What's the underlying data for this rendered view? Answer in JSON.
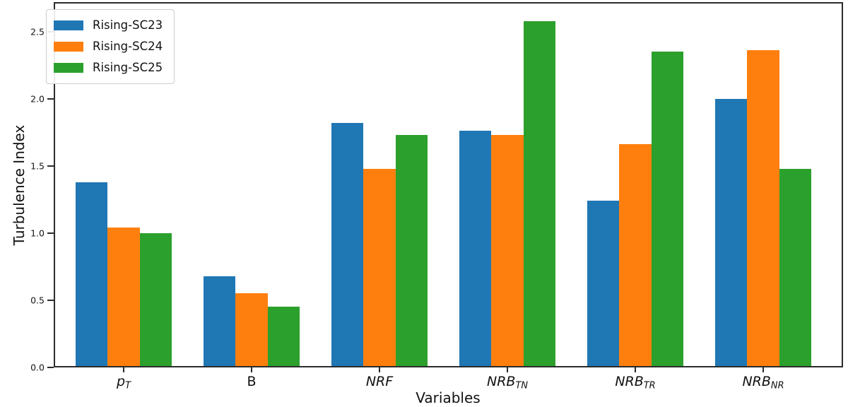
{
  "chart_data": {
    "type": "bar",
    "title": "",
    "xlabel": "Variables",
    "ylabel": "Turbulence Index",
    "categories": [
      "p_T",
      "B",
      "NRF",
      "NRB_TN",
      "NRB_TR",
      "NRB_NR"
    ],
    "x_tick_labels": [
      {
        "base": "p",
        "sub": "T",
        "italic": true
      },
      {
        "base": "B",
        "sub": "",
        "italic": false
      },
      {
        "base": "NRF",
        "sub": "",
        "italic": true
      },
      {
        "base": "NRB",
        "sub": "TN",
        "italic": true
      },
      {
        "base": "NRB",
        "sub": "TR",
        "italic": true
      },
      {
        "base": "NRB",
        "sub": "NR",
        "italic": true
      }
    ],
    "series": [
      {
        "name": "Rising-SC23",
        "color": "#1f77b4",
        "values": [
          1.38,
          0.68,
          1.82,
          1.76,
          1.24,
          2.0
        ]
      },
      {
        "name": "Rising-SC24",
        "color": "#ff7f0e",
        "values": [
          1.04,
          0.55,
          1.48,
          1.73,
          1.66,
          2.36
        ]
      },
      {
        "name": "Rising-SC25",
        "color": "#2ca02c",
        "values": [
          1.0,
          0.45,
          1.73,
          2.58,
          2.35,
          1.48
        ]
      }
    ],
    "ylim": [
      0,
      2.72
    ],
    "yticks": [
      "0.0",
      "0.5",
      "1.0",
      "1.5",
      "2.0",
      "2.5"
    ],
    "grid": false,
    "legend_position": "upper-left",
    "spine_color": "#2b2b2b",
    "background_color": "#ffffff"
  }
}
